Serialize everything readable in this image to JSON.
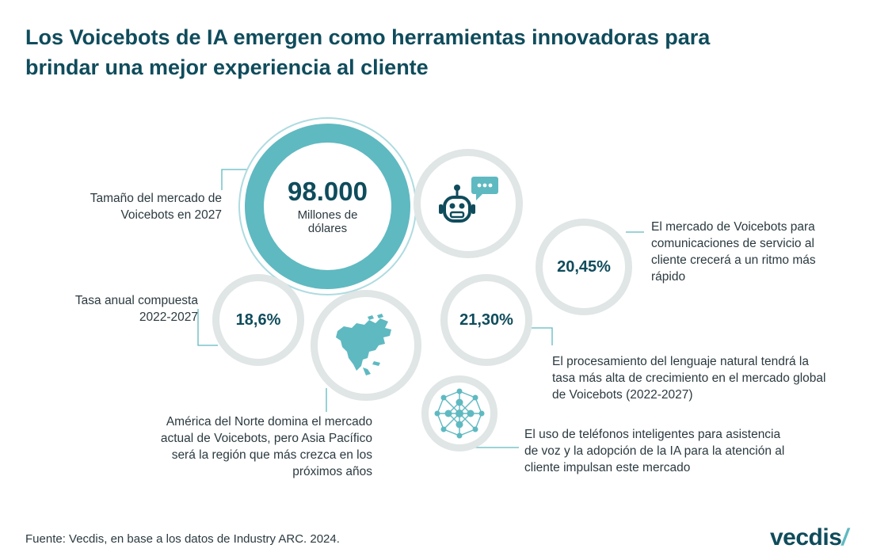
{
  "title": {
    "line1": "Los Voicebots de IA emergen como herramientas innovadoras para",
    "line2": "brindar una mejor experiencia al cliente"
  },
  "market_size": {
    "value": "98.000",
    "unit_line1": "Millones de",
    "unit_line2": "dólares",
    "label_line1": "Tamaño del mercado de",
    "label_line2": "Voicebots en 2027"
  },
  "cagr": {
    "value": "18,6%",
    "label_line1": "Tasa anual compuesta",
    "label_line2": "2022-2027"
  },
  "customer_service": {
    "value": "20,45%",
    "text_line1": "El mercado de Voicebots para",
    "text_line2": "comunicaciones de servicio al",
    "text_line3": "cliente crecerá a un ritmo más",
    "text_line4": "rápido"
  },
  "nlp": {
    "value": "21,30%",
    "text_line1": "El procesamiento del lenguaje natural tendrá la",
    "text_line2": "tasa más alta de crecimiento en el mercado global",
    "text_line3": "de Voicebots (2022-2027)"
  },
  "north_america": {
    "text_line1": "América del Norte domina el mercado",
    "text_line2": "actual de Voicebots, pero Asia Pacífico",
    "text_line3": "será la región que más crezca en los",
    "text_line4": "próximos años"
  },
  "smartphones": {
    "text_line1": "El uso de teléfonos inteligentes para asistencia",
    "text_line2": "de voz y la adopción de la IA para la atención al",
    "text_line3": "cliente impulsan este mercado"
  },
  "icons": {
    "robot": "robot-chat-icon",
    "map": "north-america-map-icon",
    "network": "network-polygon-icon"
  },
  "colors": {
    "primary": "#0f4c5c",
    "accent": "#5fb9c1",
    "ring": "#dfe6e5"
  },
  "footer": {
    "source": "Fuente: Vecdis, en base a los datos de Industry ARC. 2024."
  },
  "logo": {
    "text": "vecdis",
    "mark": "/"
  }
}
